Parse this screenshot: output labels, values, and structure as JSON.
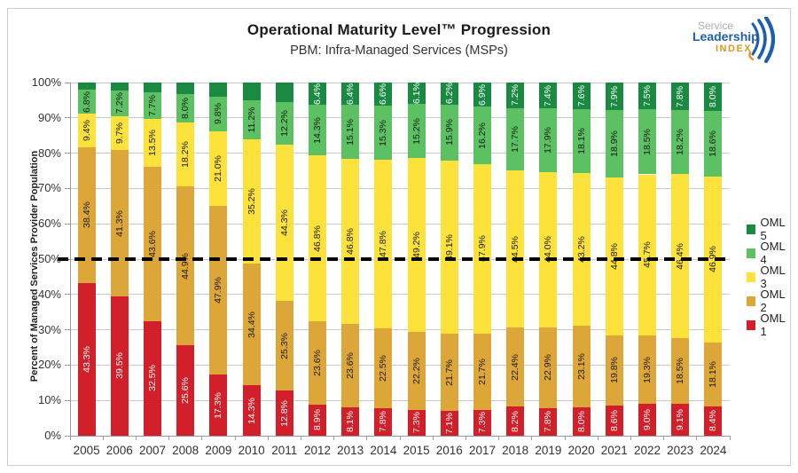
{
  "header": {
    "title": "Operational Maturity Level™ Progression",
    "subtitle": "PBM: Infra-Managed Services (MSPs)",
    "logo": {
      "line1": "Service",
      "line2": "Leadership",
      "line3": "INDEX."
    }
  },
  "chart_data": {
    "type": "bar",
    "stacked": true,
    "title": "Operational Maturity Level™ Progression",
    "subtitle": "PBM: Infra-Managed Services (MSPs)",
    "ylabel": "Percent of Managed Services Provider Population",
    "ylim": [
      0,
      100
    ],
    "ytick_step": 10,
    "ytick_suffix": "%",
    "grid": true,
    "legend_position": "right",
    "legend_order": [
      "OML 5",
      "OML 4",
      "OML 3",
      "OML 2",
      "OML 1"
    ],
    "reference_line": {
      "value": 50,
      "color": "#000000",
      "style": "dashed"
    },
    "categories": [
      "2005",
      "2006",
      "2007",
      "2008",
      "2009",
      "2010",
      "2011",
      "2012",
      "2013",
      "2014",
      "2015",
      "2016",
      "2017",
      "2018",
      "2019",
      "2020",
      "2021",
      "2022",
      "2023",
      "2024"
    ],
    "series": [
      {
        "name": "OML 1",
        "color": "#d1202a",
        "label_color": "#ffffff",
        "values": [
          43.3,
          39.5,
          32.5,
          25.6,
          17.3,
          14.3,
          12.8,
          8.9,
          8.1,
          7.8,
          7.3,
          7.1,
          7.3,
          8.2,
          7.8,
          8.0,
          8.6,
          9.0,
          9.1,
          8.4
        ],
        "show_label": [
          true,
          true,
          true,
          true,
          true,
          true,
          true,
          true,
          true,
          true,
          true,
          true,
          true,
          true,
          true,
          true,
          true,
          true,
          true,
          true
        ]
      },
      {
        "name": "OML 2",
        "color": "#dca638",
        "label_color": "#1a1a1a",
        "values": [
          38.4,
          41.3,
          43.6,
          44.9,
          47.9,
          34.4,
          25.3,
          23.6,
          23.6,
          22.5,
          22.2,
          21.7,
          21.7,
          22.4,
          22.9,
          23.1,
          19.8,
          19.3,
          18.5,
          18.1
        ],
        "show_label": [
          true,
          true,
          true,
          true,
          true,
          true,
          true,
          true,
          true,
          true,
          true,
          true,
          true,
          true,
          true,
          true,
          true,
          true,
          true,
          true
        ]
      },
      {
        "name": "OML 3",
        "color": "#fde23c",
        "label_color": "#1a1a1a",
        "values": [
          9.4,
          9.7,
          13.5,
          18.2,
          21.0,
          35.2,
          44.3,
          46.8,
          46.8,
          47.8,
          49.2,
          49.1,
          47.9,
          44.5,
          44.0,
          43.2,
          44.8,
          45.7,
          46.4,
          46.9
        ],
        "show_label": [
          true,
          true,
          true,
          true,
          true,
          true,
          true,
          true,
          true,
          true,
          true,
          true,
          true,
          true,
          true,
          true,
          true,
          true,
          true,
          true
        ]
      },
      {
        "name": "OML 4",
        "color": "#5cc163",
        "label_color": "#1a1a1a",
        "values": [
          6.8,
          7.2,
          7.7,
          8.0,
          9.8,
          11.2,
          12.2,
          14.3,
          15.1,
          15.3,
          15.2,
          15.9,
          16.2,
          17.7,
          17.9,
          18.1,
          18.9,
          18.5,
          18.2,
          18.6
        ],
        "show_label": [
          true,
          true,
          true,
          true,
          true,
          true,
          true,
          true,
          true,
          true,
          true,
          true,
          true,
          true,
          true,
          true,
          true,
          true,
          true,
          true
        ]
      },
      {
        "name": "OML 5",
        "color": "#1a8a43",
        "label_color": "#ffffff",
        "values": [
          2.1,
          2.3,
          2.7,
          3.3,
          4.0,
          4.9,
          5.4,
          6.4,
          6.4,
          6.6,
          6.1,
          6.2,
          6.9,
          7.2,
          7.4,
          7.6,
          7.9,
          7.5,
          7.8,
          8.0
        ],
        "show_label": [
          false,
          false,
          false,
          false,
          false,
          false,
          false,
          true,
          true,
          true,
          true,
          true,
          true,
          true,
          true,
          true,
          true,
          true,
          true,
          true
        ]
      }
    ]
  }
}
